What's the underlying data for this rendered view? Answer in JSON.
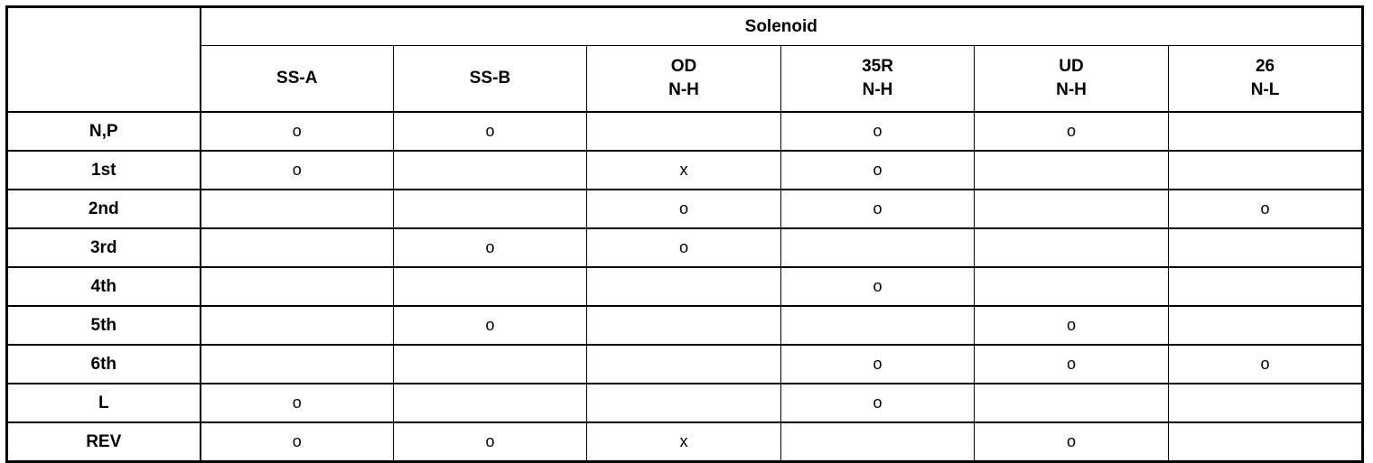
{
  "table": {
    "group_header": "Solenoid",
    "columns": [
      {
        "line1": "SS-A",
        "line2": ""
      },
      {
        "line1": "SS-B",
        "line2": ""
      },
      {
        "line1": "OD",
        "line2": "N-H"
      },
      {
        "line1": "35R",
        "line2": "N-H"
      },
      {
        "line1": "UD",
        "line2": "N-H"
      },
      {
        "line1": "26",
        "line2": "N-L"
      }
    ],
    "rows": [
      {
        "label": "N,P",
        "cells": [
          "o",
          "o",
          "",
          "o",
          "o",
          ""
        ]
      },
      {
        "label": "1st",
        "cells": [
          "o",
          "",
          "x",
          "o",
          "",
          ""
        ]
      },
      {
        "label": "2nd",
        "cells": [
          "",
          "",
          "o",
          "o",
          "",
          "o"
        ]
      },
      {
        "label": "3rd",
        "cells": [
          "",
          "o",
          "o",
          "",
          "",
          ""
        ]
      },
      {
        "label": "4th",
        "cells": [
          "",
          "",
          "",
          "o",
          "",
          ""
        ]
      },
      {
        "label": "5th",
        "cells": [
          "",
          "o",
          "",
          "",
          "o",
          ""
        ]
      },
      {
        "label": "6th",
        "cells": [
          "",
          "",
          "",
          "o",
          "o",
          "o"
        ]
      },
      {
        "label": "L",
        "cells": [
          "o",
          "",
          "",
          "o",
          "",
          ""
        ]
      },
      {
        "label": "REV",
        "cells": [
          "o",
          "o",
          "x",
          "",
          "o",
          ""
        ]
      }
    ]
  }
}
